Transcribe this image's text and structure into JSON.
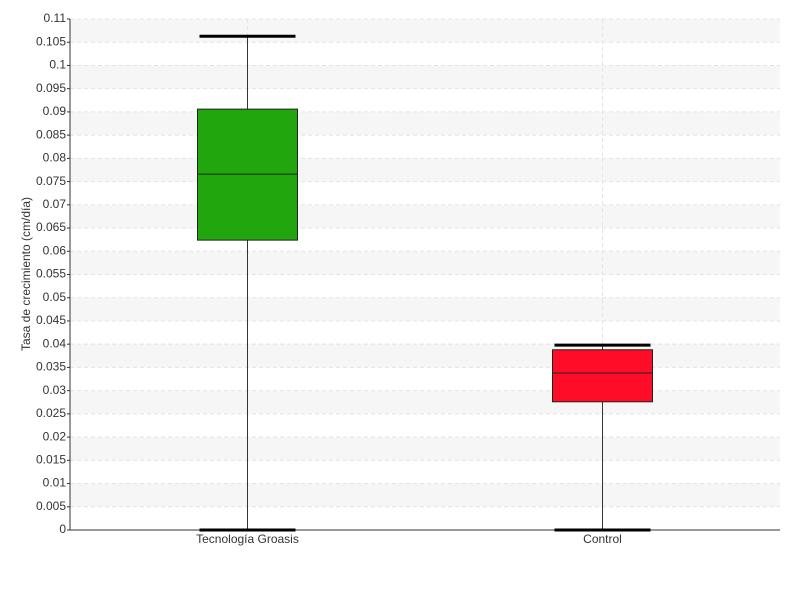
{
  "chart_data": {
    "type": "box",
    "y_label": "Tasa de crecimiento (cm/día)",
    "categories": [
      "Tecnología Groasis",
      "Control"
    ],
    "colors": [
      "#22a60e",
      "#ff0c28"
    ],
    "boxes": [
      {
        "min": 0,
        "q1": 0.0624,
        "median": 0.0766,
        "q3": 0.0906,
        "max": 0.1063
      },
      {
        "min": 0,
        "q1": 0.0276,
        "median": 0.0338,
        "q3": 0.0388,
        "max": 0.0398
      }
    ],
    "ylim": [
      0,
      0.11
    ],
    "yticks": [
      0,
      0.005,
      0.01,
      0.015,
      0.02,
      0.025,
      0.03,
      0.035,
      0.04,
      0.045,
      0.05,
      0.055,
      0.06,
      0.065,
      0.07,
      0.075,
      0.08,
      0.085,
      0.09,
      0.095,
      0.1,
      0.105,
      0.11
    ],
    "grid": true
  }
}
